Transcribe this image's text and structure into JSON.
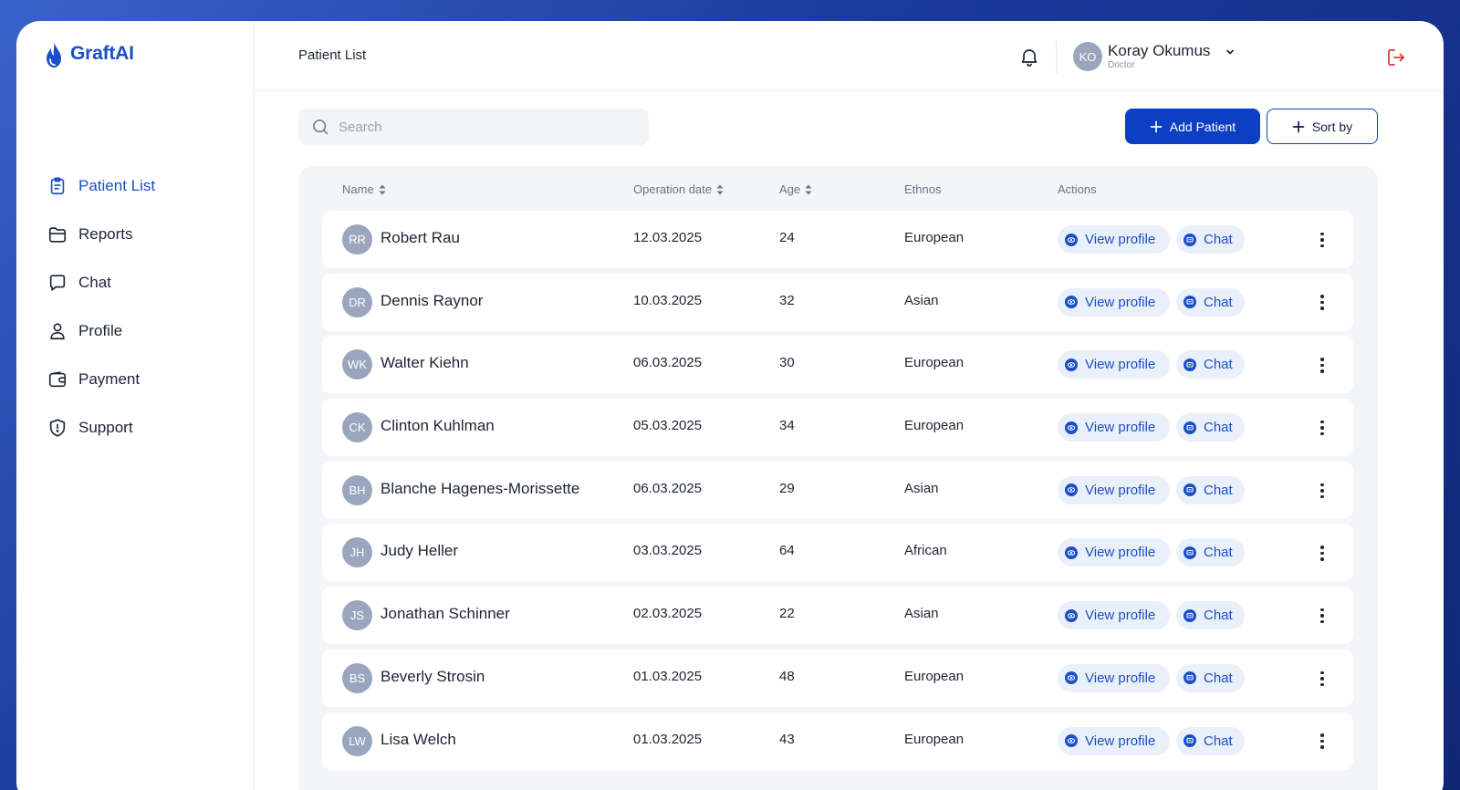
{
  "app": {
    "name": "GraftAI"
  },
  "sidebar": {
    "items": [
      {
        "label": "Patient List",
        "icon": "clipboard-icon",
        "active": true
      },
      {
        "label": "Reports",
        "icon": "folder-icon",
        "active": false
      },
      {
        "label": "Chat",
        "icon": "chat-bubble-icon",
        "active": false
      },
      {
        "label": "Profile",
        "icon": "user-icon",
        "active": false
      },
      {
        "label": "Payment",
        "icon": "wallet-icon",
        "active": false
      },
      {
        "label": "Support",
        "icon": "shield-alert-icon",
        "active": false
      }
    ]
  },
  "header": {
    "title": "Patient List",
    "user": {
      "initials": "KO",
      "name": "Koray Okumus",
      "role": "Doctor"
    }
  },
  "toolbar": {
    "search_placeholder": "Search",
    "add_patient_label": "Add Patient",
    "sort_label": "Sort by"
  },
  "table": {
    "columns": {
      "name": "Name",
      "operation_date": "Operation date",
      "age": "Age",
      "ethnos": "Ethnos",
      "actions": "Actions"
    },
    "view_profile_label": "View profile",
    "chat_label": "Chat",
    "rows": [
      {
        "initials": "RR",
        "name": "Robert Rau",
        "date": "12.03.2025",
        "age": "24",
        "ethnos": "European"
      },
      {
        "initials": "DR",
        "name": "Dennis Raynor",
        "date": "10.03.2025",
        "age": "32",
        "ethnos": "Asian"
      },
      {
        "initials": "WK",
        "name": "Walter Kiehn",
        "date": "06.03.2025",
        "age": "30",
        "ethnos": "European"
      },
      {
        "initials": "CK",
        "name": "Clinton Kuhlman",
        "date": "05.03.2025",
        "age": "34",
        "ethnos": "European"
      },
      {
        "initials": "BH",
        "name": "Blanche Hagenes-Morissette",
        "date": "06.03.2025",
        "age": "29",
        "ethnos": "Asian"
      },
      {
        "initials": "JH",
        "name": "Judy Heller",
        "date": "03.03.2025",
        "age": "64",
        "ethnos": "African"
      },
      {
        "initials": "JS",
        "name": "Jonathan Schinner",
        "date": "02.03.2025",
        "age": "22",
        "ethnos": "Asian"
      },
      {
        "initials": "BS",
        "name": "Beverly Strosin",
        "date": "01.03.2025",
        "age": "48",
        "ethnos": "European"
      },
      {
        "initials": "LW",
        "name": "Lisa Welch",
        "date": "01.03.2025",
        "age": "43",
        "ethnos": "European"
      }
    ]
  },
  "colors": {
    "brand": "#1b4fc6",
    "primary_button": "#0c3fc1",
    "pill_bg": "#eaf0f9",
    "avatar_bg": "#9aa6bd",
    "logout_icon": "#d93a3a"
  }
}
